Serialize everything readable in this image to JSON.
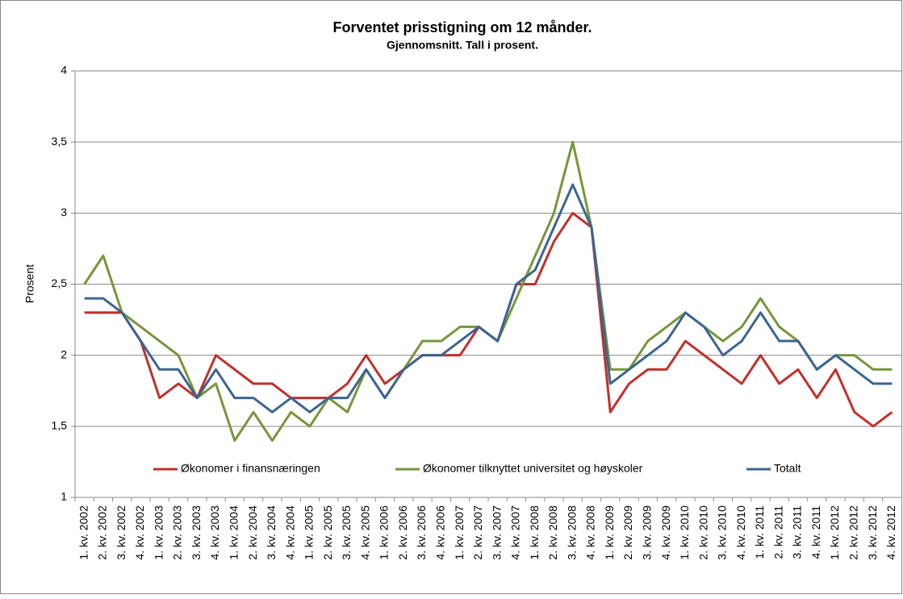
{
  "chart_data": {
    "type": "line",
    "title": "Forventet prisstigning om 12 månder.",
    "subtitle": "Gjennomsnitt.  Tall i prosent.",
    "y_label": "Prosent",
    "categories": [
      "1. kv. 2002",
      "2. kv. 2002",
      "3. kv. 2002",
      "4. kv. 2002",
      "1. kv. 2003",
      "2. kv. 2003",
      "3. kv. 2003",
      "4. kv. 2003",
      "1. kv. 2004",
      "2. kv. 2004",
      "3. kv. 2004",
      "4. kv. 2004",
      "1. kv. 2005",
      "2. kv. 2005",
      "3. kv. 2005",
      "4. kv. 2005",
      "1. kv. 2006",
      "2. kv. 2006",
      "3. kv. 2006",
      "4. kv. 2006",
      "1. kv. 2007",
      "2. kv. 2007",
      "3. kv. 2007",
      "4. kv. 2007",
      "1. kv. 2008",
      "2. kv. 2008",
      "3. kv. 2008",
      "4. kv. 2008",
      "1. kv. 2009",
      "2. kv. 2009",
      "3. kv. 2009",
      "4. kv. 2009",
      "1. kv. 2010",
      "2. kv. 2010",
      "3. kv. 2010",
      "4. kv. 2010",
      "1. kv. 2011",
      "2. kv. 2011",
      "3. kv. 2011",
      "4. kv. 2011",
      "1. kv. 2012",
      "2. kv. 2012",
      "3. kv. 2012",
      "4. kv. 2012"
    ],
    "series": [
      {
        "name": "Økonomer i finansnæringen",
        "color": "#c0302b",
        "values": [
          2.3,
          2.3,
          2.3,
          2.1,
          1.7,
          1.8,
          1.7,
          2.0,
          1.9,
          1.8,
          1.8,
          1.7,
          1.7,
          1.7,
          1.8,
          2.0,
          1.8,
          1.9,
          2.0,
          2.0,
          2.0,
          2.2,
          2.1,
          2.5,
          2.5,
          2.8,
          3.0,
          2.9,
          1.6,
          1.8,
          1.9,
          1.9,
          2.1,
          2.0,
          1.9,
          1.8,
          2.0,
          1.8,
          1.9,
          1.7,
          1.9,
          1.6,
          1.5,
          1.6
        ]
      },
      {
        "name": "Økonomer tilknyttet universitet og høyskoler",
        "color": "#77963a",
        "values": [
          2.5,
          2.7,
          2.3,
          2.2,
          2.1,
          2.0,
          1.7,
          1.8,
          1.4,
          1.6,
          1.4,
          1.6,
          1.5,
          1.7,
          1.6,
          1.9,
          1.7,
          1.9,
          2.1,
          2.1,
          2.2,
          2.2,
          2.1,
          2.4,
          2.7,
          3.0,
          3.5,
          2.9,
          1.9,
          1.9,
          2.1,
          2.2,
          2.3,
          2.2,
          2.1,
          2.2,
          2.4,
          2.2,
          2.1,
          1.9,
          2.0,
          2.0,
          1.9,
          1.9
        ]
      },
      {
        "name": "Totalt",
        "color": "#3b6591",
        "values": [
          2.4,
          2.4,
          2.3,
          2.1,
          1.9,
          1.9,
          1.7,
          1.9,
          1.7,
          1.7,
          1.6,
          1.7,
          1.6,
          1.7,
          1.7,
          1.9,
          1.7,
          1.9,
          2.0,
          2.0,
          2.1,
          2.2,
          2.1,
          2.5,
          2.6,
          2.9,
          3.2,
          2.9,
          1.8,
          1.9,
          2.0,
          2.1,
          2.3,
          2.2,
          2.0,
          2.1,
          2.3,
          2.1,
          2.1,
          1.9,
          2.0,
          1.9,
          1.8,
          1.8
        ]
      }
    ],
    "ylim": [
      1,
      4
    ],
    "yticks": [
      1,
      {
        "value": 1.5,
        "label": "1,5"
      },
      2,
      {
        "value": 2.5,
        "label": "2,5"
      },
      3,
      {
        "value": 3.5,
        "label": "3,5"
      },
      4
    ],
    "grid": true,
    "legend": "bottom"
  }
}
